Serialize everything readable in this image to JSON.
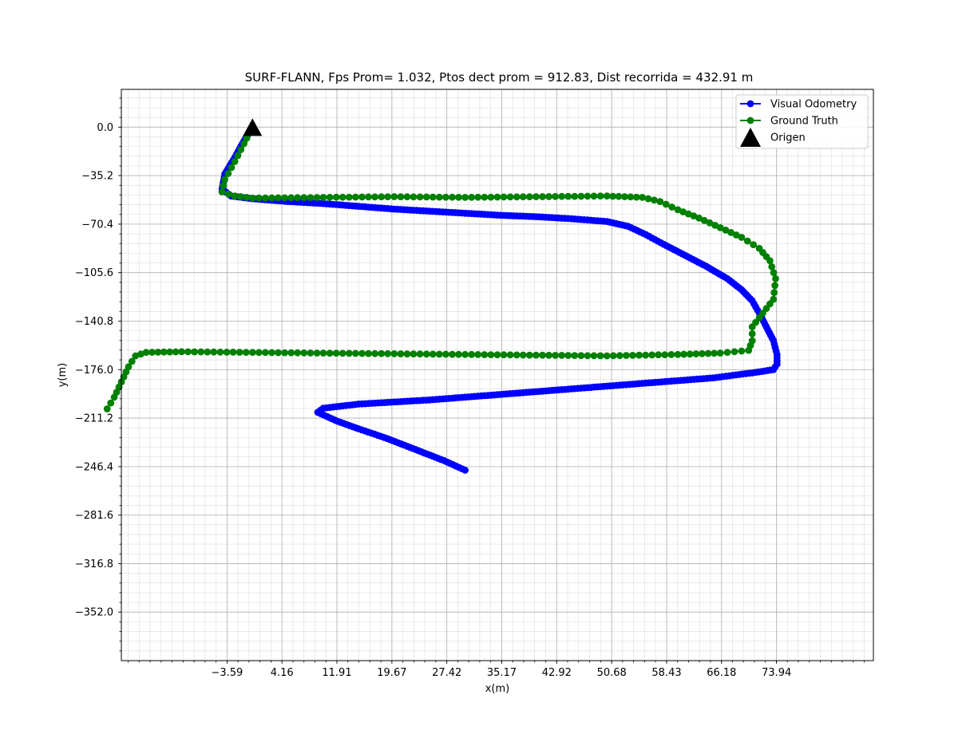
{
  "chart_data": {
    "type": "scatter",
    "title": "SURF-FLANN, Fps Prom= 1.032, Ptos dect prom = 912.83, Dist recorrida = 432.91 m",
    "xlabel": "x(m)",
    "ylabel": "y(m)",
    "xlim": [
      -18.5,
      87.6
    ],
    "ylim": [
      -387.2,
      27.4
    ],
    "x_ticks": [
      -3.59,
      4.16,
      11.91,
      19.67,
      27.42,
      35.17,
      42.92,
      50.68,
      58.43,
      66.18,
      73.94
    ],
    "x_tick_labels": [
      "−3.59",
      "4.16",
      "11.91",
      "19.67",
      "27.42",
      "35.17",
      "42.92",
      "50.68",
      "58.43",
      "66.18",
      "73.94"
    ],
    "y_ticks": [
      0.0,
      -35.2,
      -70.4,
      -105.6,
      -140.8,
      -176.0,
      -211.2,
      -246.4,
      -281.6,
      -316.8,
      -352.0
    ],
    "y_tick_labels": [
      "0.0",
      "−35.2",
      "−70.4",
      "−105.6",
      "−140.8",
      "−176.0",
      "−211.2",
      "−246.4",
      "−281.6",
      "−316.8",
      "−352.0"
    ],
    "grid": "major and minor",
    "legend_position": "top-right",
    "legend": [
      {
        "label": "Visual Odometry",
        "marker": "line-circle",
        "color": "#0000ff"
      },
      {
        "label": "Ground Truth",
        "marker": "line-circle",
        "color": "#008000"
      },
      {
        "label": "Origen",
        "marker": "triangle",
        "color": "#000000"
      }
    ],
    "series": [
      {
        "name": "Visual Odometry",
        "color": "#0000ff",
        "x": [
          0.0,
          -1.2,
          -2.5,
          -3.9,
          -4.3,
          -3.0,
          0.0,
          5.0,
          10.0,
          15.0,
          20.0,
          25.0,
          30.0,
          35.0,
          40.0,
          45.0,
          50.0,
          53.0,
          55.5,
          58.0,
          61.0,
          64.0,
          67.0,
          69.0,
          70.5,
          71.5,
          72.5,
          73.5,
          74.0,
          74.0,
          73.5,
          71.0,
          65.0,
          55.0,
          45.0,
          35.0,
          25.0,
          15.0,
          10.0,
          9.2,
          10.5,
          12.0,
          15.0,
          19.0,
          23.0,
          27.0,
          30.0
        ],
        "y": [
          0.0,
          -10.0,
          -22.0,
          -34.0,
          -45.0,
          -50.0,
          -52.0,
          -54.0,
          -55.5,
          -57.5,
          -59.5,
          -61.0,
          -62.5,
          -64.0,
          -65.0,
          -66.5,
          -68.5,
          -72.0,
          -78.0,
          -85.0,
          -93.0,
          -101.0,
          -110.0,
          -118.0,
          -126.0,
          -135.0,
          -145.0,
          -155.0,
          -165.0,
          -172.0,
          -176.0,
          -178.0,
          -182.0,
          -186.0,
          -190.0,
          -194.0,
          -198.0,
          -201.0,
          -204.0,
          -207.0,
          -210.0,
          -213.5,
          -219.0,
          -226.0,
          -234.0,
          -242.0,
          -249.0
        ]
      },
      {
        "name": "Ground Truth",
        "color": "#008000",
        "x": [
          0.0,
          -1.2,
          -2.5,
          -3.9,
          -4.3,
          -2.5,
          0.0,
          10.0,
          20.0,
          30.0,
          40.0,
          50.0,
          55.0,
          57.5,
          60.0,
          63.0,
          66.0,
          69.0,
          71.5,
          73.0,
          73.8,
          73.5,
          72.0,
          70.5,
          70.5,
          70.0,
          66.0,
          60.0,
          50.0,
          40.0,
          30.0,
          20.0,
          10.0,
          0.0,
          -10.0,
          -15.0,
          -16.5,
          -17.5,
          -18.5,
          -19.5,
          -20.5
        ],
        "y": [
          0.0,
          -12.0,
          -25.0,
          -38.0,
          -47.0,
          -50.0,
          -51.5,
          -51.0,
          -50.5,
          -51.0,
          -50.5,
          -50.0,
          -51.0,
          -54.0,
          -60.0,
          -66.0,
          -73.0,
          -80.0,
          -88.0,
          -97.0,
          -110.0,
          -125.0,
          -135.0,
          -145.0,
          -155.0,
          -162.0,
          -164.0,
          -165.0,
          -166.0,
          -165.5,
          -165.0,
          -164.5,
          -164.0,
          -163.5,
          -163.0,
          -163.5,
          -166.0,
          -174.0,
          -185.0,
          -196.0,
          -204.5
        ]
      },
      {
        "name": "Origen",
        "color": "#000000",
        "x": [
          0.0
        ],
        "y": [
          0.0
        ]
      }
    ]
  }
}
